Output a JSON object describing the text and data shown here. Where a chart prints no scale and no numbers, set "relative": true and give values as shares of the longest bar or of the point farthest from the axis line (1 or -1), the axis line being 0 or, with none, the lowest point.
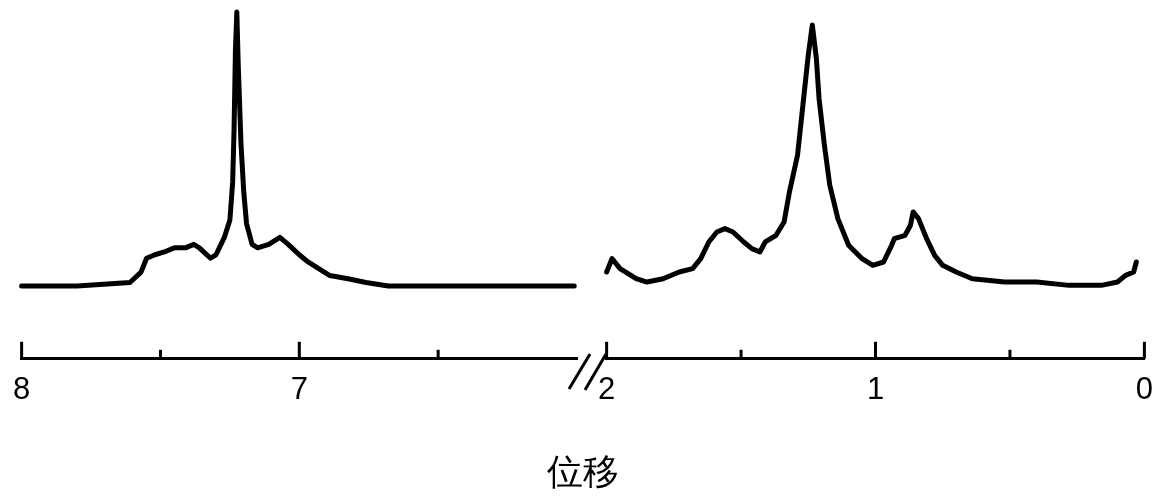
{
  "chart_data": [
    {
      "type": "line",
      "relative": true,
      "xlabel": "位移",
      "xlim": [
        8,
        6
      ],
      "xticks": [
        8,
        {
          "value": 7.5,
          "label": null
        },
        7,
        {
          "value": 6.5,
          "label": null
        }
      ],
      "color": "#000000",
      "x": [
        8.0,
        7.8,
        7.61,
        7.57,
        7.55,
        7.52,
        7.48,
        7.45,
        7.41,
        7.38,
        7.36,
        7.32,
        7.3,
        7.27,
        7.25,
        7.24,
        7.235,
        7.23,
        7.225,
        7.22,
        7.21,
        7.2,
        7.19,
        7.17,
        7.15,
        7.11,
        7.07,
        7.04,
        7.0,
        6.97,
        6.93,
        6.89,
        6.82,
        6.76,
        6.68,
        6.46,
        6.21,
        6.01
      ],
      "values": [
        0.21,
        0.21,
        0.22,
        0.25,
        0.29,
        0.3,
        0.31,
        0.32,
        0.32,
        0.33,
        0.32,
        0.29,
        0.3,
        0.35,
        0.4,
        0.51,
        0.66,
        0.89,
        1,
        0.85,
        0.62,
        0.48,
        0.39,
        0.33,
        0.32,
        0.33,
        0.35,
        0.33,
        0.3,
        0.28,
        0.26,
        0.24,
        0.23,
        0.22,
        0.21,
        0.21,
        0.21,
        0.21
      ]
    },
    {
      "type": "line",
      "relative": true,
      "xlim": [
        2,
        0
      ],
      "xticks": [
        2,
        {
          "value": 1.5,
          "label": null
        },
        1,
        {
          "value": 0.5,
          "label": null
        },
        0
      ],
      "color": "#000000",
      "x": [
        2.0,
        1.98,
        1.95,
        1.89,
        1.85,
        1.79,
        1.73,
        1.68,
        1.65,
        1.62,
        1.59,
        1.56,
        1.53,
        1.49,
        1.46,
        1.43,
        1.41,
        1.37,
        1.34,
        1.32,
        1.29,
        1.27,
        1.25,
        1.235,
        1.22,
        1.21,
        1.19,
        1.17,
        1.14,
        1.1,
        1.05,
        1.01,
        0.97,
        0.94,
        0.93,
        0.89,
        0.87,
        0.86,
        0.84,
        0.81,
        0.78,
        0.75,
        0.7,
        0.64,
        0.52,
        0.4,
        0.28,
        0.16,
        0.1,
        0.07,
        0.04,
        0.03
      ],
      "values": [
        0.26,
        0.3,
        0.27,
        0.24,
        0.23,
        0.24,
        0.26,
        0.27,
        0.3,
        0.35,
        0.38,
        0.39,
        0.38,
        0.35,
        0.33,
        0.32,
        0.35,
        0.37,
        0.41,
        0.5,
        0.61,
        0.76,
        0.91,
        1,
        0.9,
        0.78,
        0.64,
        0.52,
        0.42,
        0.34,
        0.3,
        0.28,
        0.29,
        0.34,
        0.36,
        0.37,
        0.4,
        0.44,
        0.42,
        0.36,
        0.31,
        0.28,
        0.26,
        0.24,
        0.23,
        0.23,
        0.22,
        0.22,
        0.23,
        0.25,
        0.26,
        0.29
      ]
    }
  ]
}
